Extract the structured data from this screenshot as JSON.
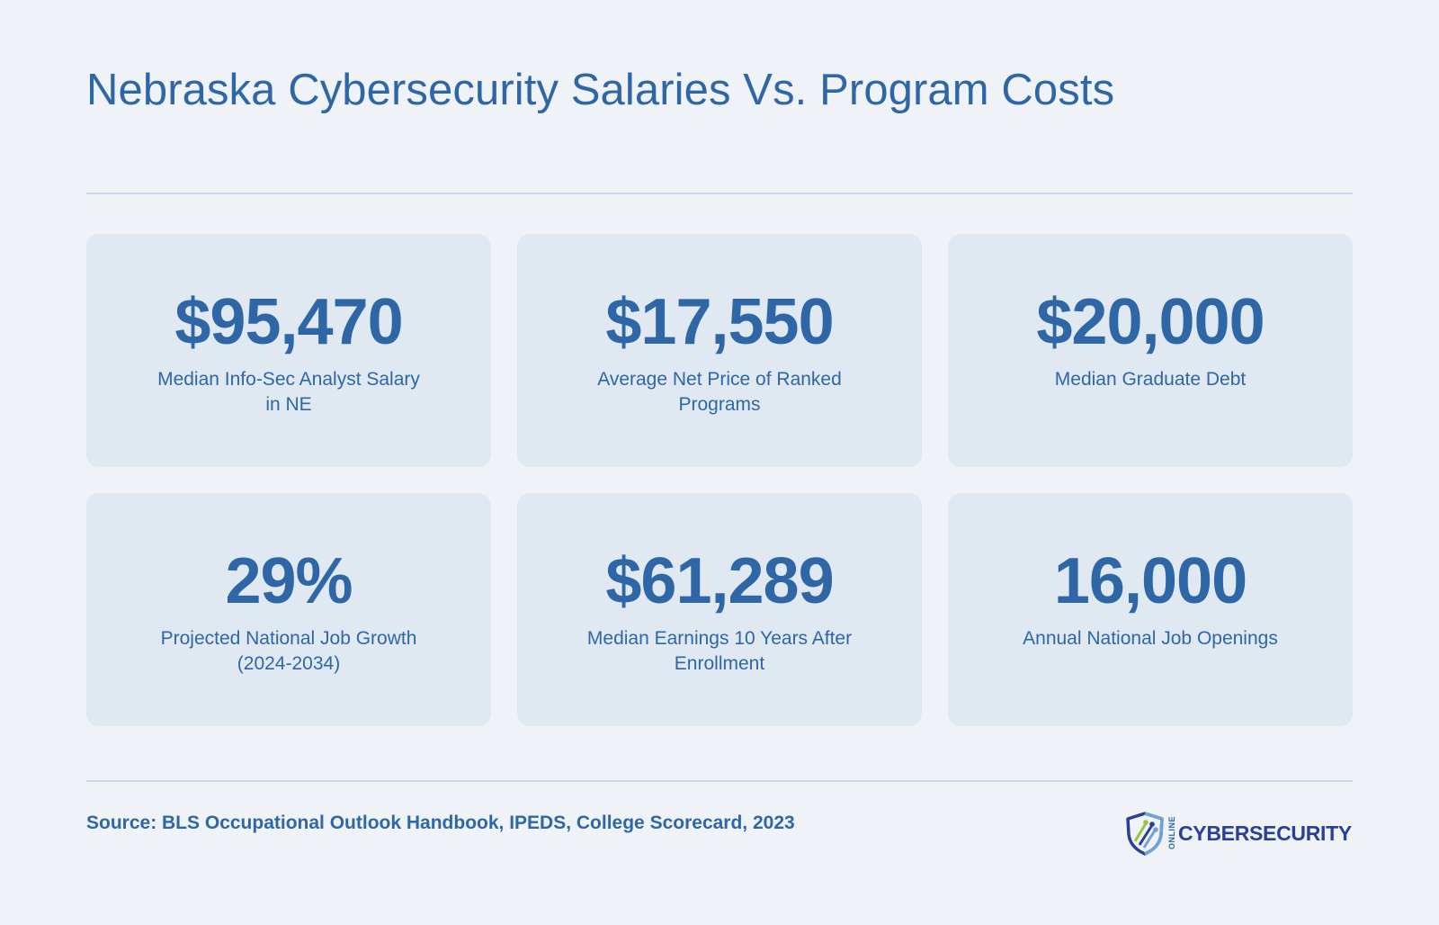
{
  "header": {
    "title": "Nebraska Cybersecurity Salaries Vs. Program Costs"
  },
  "stats": [
    {
      "value": "$95,470",
      "label": "Median Info-Sec Analyst Salary in NE"
    },
    {
      "value": "$17,550",
      "label": "Average Net Price of Ranked Programs"
    },
    {
      "value": "$20,000",
      "label": "Median Graduate Debt"
    },
    {
      "value": "29%",
      "label": "Projected National Job Growth (2024-2034)"
    },
    {
      "value": "$61,289",
      "label": "Median Earnings 10 Years After Enrollment"
    },
    {
      "value": "16,000",
      "label": "Annual National Job Openings"
    }
  ],
  "footer": {
    "source": "Source: BLS Occupational Outlook Handbook, IPEDS, College Scorecard, 2023",
    "logo": {
      "small_text": "ONLINE",
      "word": "CYBERSECURITY",
      "icon": "shield-icon"
    }
  },
  "colors": {
    "background": "#eff3f8",
    "card": "#e0e8f1",
    "accent": "#2f67a6",
    "rule": "#c8d8ea",
    "logo_navy": "#2a3f97",
    "logo_green": "#9cc33b"
  }
}
